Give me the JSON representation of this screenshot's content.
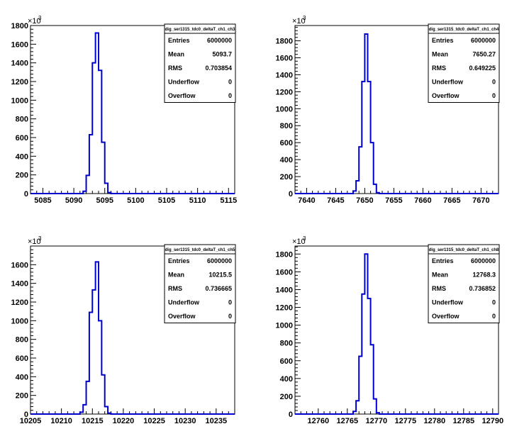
{
  "colors": {
    "hist_line": "#0000cc",
    "axis": "#000000",
    "background": "#ffffff"
  },
  "chart_data": [
    {
      "type": "histogram",
      "stats_title": "dig_ser1315_tdc0_deltaT_ch1_ch3",
      "stats": [
        {
          "label": "Entries",
          "value": "6000000"
        },
        {
          "label": "Mean",
          "value": "5093.7"
        },
        {
          "label": "RMS",
          "value": "0.703854"
        },
        {
          "label": "Underflow",
          "value": "0"
        },
        {
          "label": "Overflow",
          "value": "0"
        }
      ],
      "y_multiplier": "×10",
      "y_exponent": "3",
      "xlim": [
        5083,
        5116
      ],
      "ylim": [
        0,
        1800
      ],
      "xticks": [
        5085,
        5090,
        5095,
        5100,
        5105,
        5110,
        5115
      ],
      "yticks": [
        0,
        200,
        400,
        600,
        800,
        1000,
        1200,
        1400,
        1600,
        1800
      ],
      "bin_width": 0.5,
      "bins": [
        {
          "x": 5091.5,
          "y": 25
        },
        {
          "x": 5092.0,
          "y": 195
        },
        {
          "x": 5092.5,
          "y": 630
        },
        {
          "x": 5093.0,
          "y": 1400
        },
        {
          "x": 5093.5,
          "y": 1720
        },
        {
          "x": 5094.0,
          "y": 1320
        },
        {
          "x": 5094.5,
          "y": 550
        },
        {
          "x": 5095.0,
          "y": 110
        },
        {
          "x": 5095.5,
          "y": 10
        }
      ]
    },
    {
      "type": "histogram",
      "stats_title": "dig_ser1315_tdc0_deltaT_ch1_ch4",
      "stats": [
        {
          "label": "Entries",
          "value": "6000000"
        },
        {
          "label": "Mean",
          "value": "7650.27"
        },
        {
          "label": "RMS",
          "value": "0.649225"
        },
        {
          "label": "Underflow",
          "value": "0"
        },
        {
          "label": "Overflow",
          "value": "0"
        }
      ],
      "y_multiplier": "×10",
      "y_exponent": "3",
      "xlim": [
        7638,
        7673
      ],
      "ylim": [
        0,
        1980
      ],
      "xticks": [
        7640,
        7645,
        7650,
        7655,
        7660,
        7665,
        7670
      ],
      "yticks": [
        0,
        200,
        400,
        600,
        800,
        1000,
        1200,
        1400,
        1600,
        1800
      ],
      "bin_width": 0.5,
      "bins": [
        {
          "x": 7648.0,
          "y": 30
        },
        {
          "x": 7648.5,
          "y": 150
        },
        {
          "x": 7649.0,
          "y": 550
        },
        {
          "x": 7649.5,
          "y": 1320
        },
        {
          "x": 7650.0,
          "y": 1880
        },
        {
          "x": 7650.5,
          "y": 1320
        },
        {
          "x": 7651.0,
          "y": 600
        },
        {
          "x": 7651.5,
          "y": 110
        },
        {
          "x": 7652.0,
          "y": 10
        }
      ]
    },
    {
      "type": "histogram",
      "stats_title": "dig_ser1315_tdc0_deltaT_ch1_ch5",
      "stats": [
        {
          "label": "Entries",
          "value": "6000000"
        },
        {
          "label": "Mean",
          "value": "10215.5"
        },
        {
          "label": "RMS",
          "value": "0.736665"
        },
        {
          "label": "Underflow",
          "value": "0"
        },
        {
          "label": "Overflow",
          "value": "0"
        }
      ],
      "y_multiplier": "×10",
      "y_exponent": "3",
      "xlim": [
        10205,
        10238
      ],
      "ylim": [
        0,
        1800
      ],
      "xticks": [
        10205,
        10210,
        10215,
        10220,
        10225,
        10230,
        10235
      ],
      "yticks": [
        0,
        200,
        400,
        600,
        800,
        1000,
        1200,
        1400,
        1600
      ],
      "bin_width": 0.5,
      "bins": [
        {
          "x": 10213.0,
          "y": 20
        },
        {
          "x": 10213.5,
          "y": 100
        },
        {
          "x": 10214.0,
          "y": 350
        },
        {
          "x": 10214.5,
          "y": 1090
        },
        {
          "x": 10215.0,
          "y": 1330
        },
        {
          "x": 10215.5,
          "y": 1630
        },
        {
          "x": 10216.0,
          "y": 1000
        },
        {
          "x": 10216.5,
          "y": 420
        },
        {
          "x": 10217.0,
          "y": 80
        },
        {
          "x": 10217.5,
          "y": 10
        }
      ]
    },
    {
      "type": "histogram",
      "stats_title": "dig_ser1315_tdc0_deltaT_ch1_ch8",
      "stats": [
        {
          "label": "Entries",
          "value": "6000000"
        },
        {
          "label": "Mean",
          "value": "12768.3"
        },
        {
          "label": "RMS",
          "value": "0.736852"
        },
        {
          "label": "Underflow",
          "value": "0"
        },
        {
          "label": "Overflow",
          "value": "0"
        }
      ],
      "y_multiplier": "×10",
      "y_exponent": "3",
      "xlim": [
        12756,
        12791
      ],
      "ylim": [
        0,
        1890
      ],
      "xticks": [
        12760,
        12765,
        12770,
        12775,
        12780,
        12785,
        12790
      ],
      "yticks": [
        0,
        200,
        400,
        600,
        800,
        1000,
        1200,
        1400,
        1600,
        1800
      ],
      "bin_width": 0.5,
      "bins": [
        {
          "x": 12766.0,
          "y": 30
        },
        {
          "x": 12766.5,
          "y": 150
        },
        {
          "x": 12767.0,
          "y": 650
        },
        {
          "x": 12767.5,
          "y": 1350
        },
        {
          "x": 12768.0,
          "y": 1800
        },
        {
          "x": 12768.5,
          "y": 1300
        },
        {
          "x": 12769.0,
          "y": 780
        },
        {
          "x": 12769.5,
          "y": 170
        },
        {
          "x": 12770.0,
          "y": 15
        }
      ]
    }
  ]
}
